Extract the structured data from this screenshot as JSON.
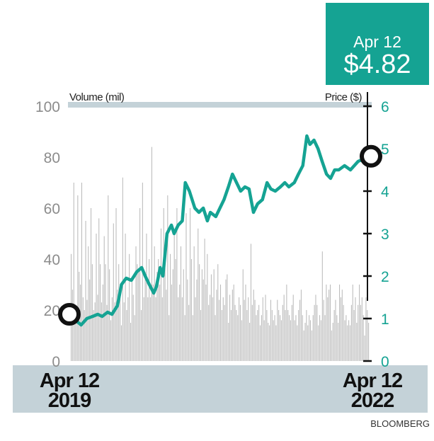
{
  "callout": {
    "date": "Apr 12",
    "price": "$4.82"
  },
  "source": "BLOOMBERG",
  "chart_data": {
    "type": "bar+line",
    "left_axis": {
      "label": "Volume (mil)",
      "ticks": [
        0,
        20,
        40,
        60,
        80,
        100
      ],
      "range": [
        0,
        100
      ]
    },
    "right_axis": {
      "label": "Price ($)",
      "ticks": [
        0,
        1,
        2,
        3,
        4,
        5,
        6
      ],
      "range": [
        0,
        6
      ]
    },
    "x_labels": [
      {
        "line1": "Apr 12",
        "line2": "2019"
      },
      {
        "line1": "Apr 12",
        "line2": "2022"
      }
    ],
    "x_range": [
      "2019-04-12",
      "2022-04-12"
    ],
    "price_marker_start": {
      "date": "2019-04-12",
      "price": 1.1
    },
    "price_marker_end": {
      "date": "2022-04-12",
      "price": 4.82
    },
    "colors": {
      "price": "#15a393",
      "volume": "#b9b9b9",
      "band": "#c4d2d8",
      "callout": "#15a393"
    },
    "series": [
      {
        "name": "Price ($)",
        "axis": "right",
        "points": [
          [
            "2019-04-12",
            1.1
          ],
          [
            "2019-05-01",
            0.95
          ],
          [
            "2019-05-20",
            0.85
          ],
          [
            "2019-06-10",
            1.0
          ],
          [
            "2019-07-01",
            1.05
          ],
          [
            "2019-07-20",
            1.1
          ],
          [
            "2019-08-05",
            1.05
          ],
          [
            "2019-08-25",
            1.15
          ],
          [
            "2019-09-10",
            1.1
          ],
          [
            "2019-09-30",
            1.3
          ],
          [
            "2019-10-15",
            1.8
          ],
          [
            "2019-11-01",
            1.95
          ],
          [
            "2019-11-20",
            1.9
          ],
          [
            "2019-12-10",
            2.1
          ],
          [
            "2019-12-28",
            2.2
          ],
          [
            "2020-01-10",
            2.0
          ],
          [
            "2020-01-25",
            1.8
          ],
          [
            "2020-02-10",
            1.6
          ],
          [
            "2020-02-20",
            1.75
          ],
          [
            "2020-03-05",
            2.2
          ],
          [
            "2020-03-15",
            2.0
          ],
          [
            "2020-03-30",
            3.0
          ],
          [
            "2020-04-15",
            3.2
          ],
          [
            "2020-04-25",
            3.0
          ],
          [
            "2020-05-10",
            3.2
          ],
          [
            "2020-05-25",
            3.3
          ],
          [
            "2020-06-05",
            4.2
          ],
          [
            "2020-06-20",
            4.0
          ],
          [
            "2020-07-10",
            3.6
          ],
          [
            "2020-07-25",
            3.5
          ],
          [
            "2020-08-10",
            3.6
          ],
          [
            "2020-08-25",
            3.3
          ],
          [
            "2020-09-05",
            3.5
          ],
          [
            "2020-09-25",
            3.4
          ],
          [
            "2020-10-10",
            3.6
          ],
          [
            "2020-10-25",
            3.8
          ],
          [
            "2020-11-10",
            4.1
          ],
          [
            "2020-11-25",
            4.4
          ],
          [
            "2020-12-10",
            4.2
          ],
          [
            "2020-12-25",
            4.0
          ],
          [
            "2021-01-10",
            4.1
          ],
          [
            "2021-01-25",
            4.05
          ],
          [
            "2021-02-10",
            3.5
          ],
          [
            "2021-02-25",
            3.7
          ],
          [
            "2021-03-15",
            3.8
          ],
          [
            "2021-04-01",
            4.2
          ],
          [
            "2021-04-15",
            4.05
          ],
          [
            "2021-05-01",
            4.0
          ],
          [
            "2021-05-20",
            4.1
          ],
          [
            "2021-06-05",
            4.2
          ],
          [
            "2021-06-20",
            4.1
          ],
          [
            "2021-07-10",
            4.2
          ],
          [
            "2021-07-25",
            4.4
          ],
          [
            "2021-08-10",
            4.6
          ],
          [
            "2021-08-25",
            5.3
          ],
          [
            "2021-09-05",
            5.1
          ],
          [
            "2021-09-20",
            5.2
          ],
          [
            "2021-10-05",
            5.0
          ],
          [
            "2021-10-20",
            4.7
          ],
          [
            "2021-11-05",
            4.4
          ],
          [
            "2021-11-20",
            4.3
          ],
          [
            "2021-12-05",
            4.5
          ],
          [
            "2021-12-20",
            4.5
          ],
          [
            "2022-01-10",
            4.6
          ],
          [
            "2022-02-01",
            4.5
          ],
          [
            "2022-03-01",
            4.7
          ],
          [
            "2022-04-12",
            4.82
          ]
        ]
      },
      {
        "name": "Volume (mil)",
        "axis": "left",
        "type": "bar",
        "weekly_values": [
          42,
          28,
          70,
          22,
          18,
          65,
          35,
          30,
          70,
          25,
          20,
          55,
          24,
          45,
          32,
          60,
          38,
          20,
          23,
          50,
          26,
          56,
          38,
          23,
          30,
          49,
          38,
          22,
          65,
          36,
          16,
          25,
          54,
          23,
          60,
          28,
          38,
          30,
          14,
          72,
          23,
          50,
          20,
          25,
          42,
          15,
          31,
          26,
          18,
          45,
          38,
          35,
          60,
          20,
          70,
          25,
          35,
          50,
          25,
          40,
          25,
          84,
          30,
          45,
          25,
          35,
          40,
          30,
          52,
          25,
          60,
          38,
          28,
          65,
          18,
          42,
          30,
          36,
          50,
          40,
          60,
          25,
          30,
          45,
          25,
          36,
          18,
          58,
          32,
          22,
          60,
          40,
          18,
          45,
          25,
          32,
          52,
          38,
          20,
          36,
          32,
          48,
          30,
          42,
          22,
          26,
          34,
          25,
          36,
          18,
          28,
          38,
          24,
          30,
          20,
          25,
          22,
          32,
          34,
          15,
          26,
          20,
          28,
          30,
          22,
          20,
          18,
          25,
          22,
          16,
          36,
          24,
          30,
          20,
          25,
          15,
          46,
          22,
          28,
          24,
          18,
          20,
          22,
          14,
          18,
          25,
          16,
          26,
          20,
          15,
          14,
          24,
          20,
          16,
          18,
          14,
          24,
          20,
          18,
          16,
          22,
          26,
          20,
          30,
          20,
          18,
          16,
          22,
          26,
          16,
          18,
          14,
          20,
          24,
          28,
          18,
          12,
          15,
          20,
          14,
          18,
          16,
          12,
          18,
          22,
          26,
          22,
          14,
          18,
          16,
          43,
          24,
          18,
          30,
          25,
          28,
          30,
          12,
          15,
          20,
          24,
          18,
          15,
          30,
          25,
          28,
          22,
          16,
          18,
          14,
          16,
          14,
          22,
          30,
          20,
          25,
          15,
          22,
          30,
          22,
          25,
          18,
          10,
          25,
          20,
          15
        ]
      }
    ]
  }
}
